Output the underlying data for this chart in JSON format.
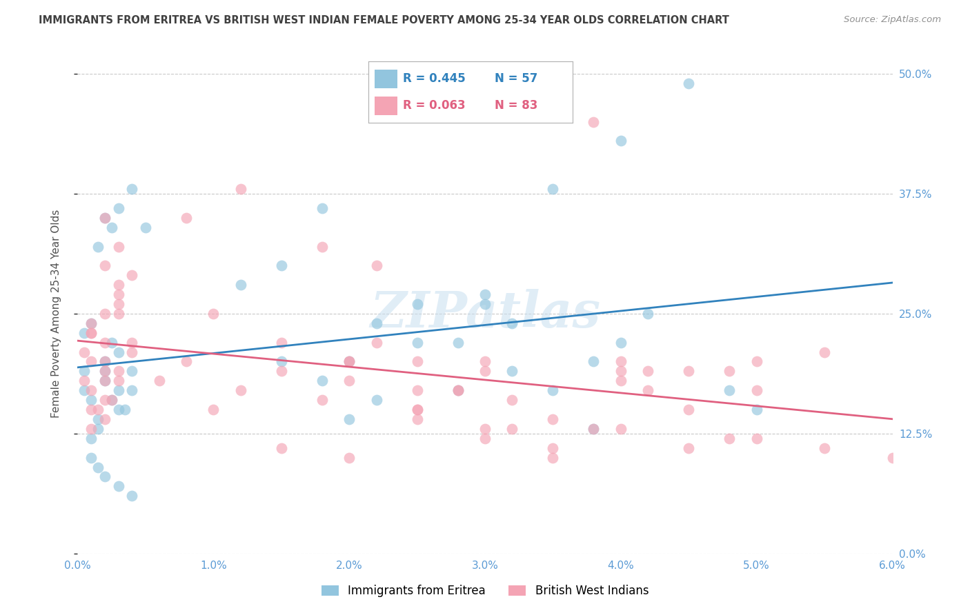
{
  "title": "IMMIGRANTS FROM ERITREA VS BRITISH WEST INDIAN FEMALE POVERTY AMONG 25-34 YEAR OLDS CORRELATION CHART",
  "source": "Source: ZipAtlas.com",
  "ylabel": "Female Poverty Among 25-34 Year Olds",
  "legend_blue_r": "R = 0.445",
  "legend_blue_n": "N = 57",
  "legend_pink_r": "R = 0.063",
  "legend_pink_n": "N = 83",
  "legend_blue_label": "Immigrants from Eritrea",
  "legend_pink_label": "British West Indians",
  "xlim": [
    0.0,
    0.06
  ],
  "ylim": [
    0.0,
    0.5
  ],
  "xticks": [
    0.0,
    0.01,
    0.02,
    0.03,
    0.04,
    0.05,
    0.06
  ],
  "xticklabels": [
    "0.0%",
    "1.0%",
    "2.0%",
    "3.0%",
    "4.0%",
    "5.0%",
    "6.0%"
  ],
  "yticks": [
    0.0,
    0.125,
    0.25,
    0.375,
    0.5
  ],
  "yticklabels": [
    "0.0%",
    "12.5%",
    "25.0%",
    "37.5%",
    "50.0%"
  ],
  "blue_color": "#92c5de",
  "pink_color": "#f4a4b4",
  "blue_line_color": "#3182bd",
  "pink_line_color": "#e06080",
  "watermark": "ZIPatlas",
  "blue_scatter_x": [
    0.0005,
    0.001,
    0.0015,
    0.002,
    0.0025,
    0.003,
    0.0005,
    0.001,
    0.0015,
    0.002,
    0.0025,
    0.003,
    0.0035,
    0.004,
    0.0005,
    0.001,
    0.0015,
    0.002,
    0.003,
    0.004,
    0.0015,
    0.002,
    0.0025,
    0.003,
    0.004,
    0.005,
    0.001,
    0.002,
    0.003,
    0.004,
    0.012,
    0.015,
    0.018,
    0.02,
    0.022,
    0.025,
    0.028,
    0.03,
    0.032,
    0.035,
    0.038,
    0.04,
    0.042,
    0.045,
    0.048,
    0.05,
    0.038,
    0.022,
    0.02,
    0.025,
    0.03,
    0.015,
    0.018,
    0.028,
    0.032,
    0.035,
    0.04
  ],
  "blue_scatter_y": [
    0.17,
    0.12,
    0.14,
    0.18,
    0.16,
    0.15,
    0.19,
    0.1,
    0.13,
    0.2,
    0.22,
    0.21,
    0.15,
    0.17,
    0.23,
    0.24,
    0.09,
    0.08,
    0.07,
    0.06,
    0.32,
    0.35,
    0.34,
    0.36,
    0.38,
    0.34,
    0.16,
    0.19,
    0.17,
    0.19,
    0.28,
    0.3,
    0.18,
    0.2,
    0.24,
    0.22,
    0.17,
    0.27,
    0.19,
    0.17,
    0.2,
    0.22,
    0.25,
    0.49,
    0.17,
    0.15,
    0.13,
    0.16,
    0.14,
    0.26,
    0.26,
    0.2,
    0.36,
    0.22,
    0.24,
    0.38,
    0.43
  ],
  "pink_scatter_x": [
    0.0005,
    0.001,
    0.0015,
    0.002,
    0.001,
    0.0025,
    0.003,
    0.0005,
    0.001,
    0.002,
    0.003,
    0.001,
    0.002,
    0.003,
    0.004,
    0.002,
    0.001,
    0.003,
    0.002,
    0.004,
    0.002,
    0.003,
    0.001,
    0.002,
    0.003,
    0.001,
    0.002,
    0.003,
    0.004,
    0.002,
    0.006,
    0.008,
    0.01,
    0.012,
    0.015,
    0.018,
    0.02,
    0.022,
    0.025,
    0.028,
    0.03,
    0.032,
    0.035,
    0.038,
    0.04,
    0.042,
    0.045,
    0.048,
    0.05,
    0.055,
    0.025,
    0.03,
    0.035,
    0.04,
    0.045,
    0.01,
    0.015,
    0.02,
    0.025,
    0.008,
    0.012,
    0.018,
    0.022,
    0.028,
    0.032,
    0.038,
    0.042,
    0.048,
    0.015,
    0.02,
    0.025,
    0.03,
    0.035,
    0.04,
    0.045,
    0.05,
    0.055,
    0.06,
    0.02,
    0.025,
    0.03,
    0.04,
    0.05
  ],
  "pink_scatter_y": [
    0.18,
    0.2,
    0.15,
    0.22,
    0.17,
    0.16,
    0.19,
    0.21,
    0.23,
    0.14,
    0.25,
    0.13,
    0.16,
    0.28,
    0.29,
    0.18,
    0.15,
    0.32,
    0.35,
    0.22,
    0.3,
    0.26,
    0.24,
    0.2,
    0.18,
    0.23,
    0.25,
    0.27,
    0.21,
    0.19,
    0.18,
    0.2,
    0.15,
    0.17,
    0.19,
    0.16,
    0.18,
    0.22,
    0.2,
    0.17,
    0.19,
    0.16,
    0.14,
    0.13,
    0.2,
    0.17,
    0.15,
    0.19,
    0.2,
    0.21,
    0.15,
    0.13,
    0.11,
    0.18,
    0.19,
    0.25,
    0.22,
    0.2,
    0.15,
    0.35,
    0.38,
    0.32,
    0.3,
    0.17,
    0.13,
    0.45,
    0.19,
    0.12,
    0.11,
    0.1,
    0.14,
    0.12,
    0.1,
    0.13,
    0.11,
    0.12,
    0.11,
    0.1,
    0.2,
    0.17,
    0.2,
    0.19,
    0.17
  ]
}
